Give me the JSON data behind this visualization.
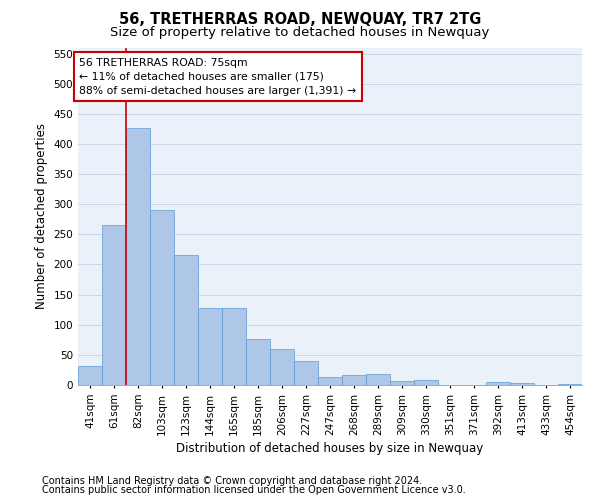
{
  "title": "56, TRETHERRAS ROAD, NEWQUAY, TR7 2TG",
  "subtitle": "Size of property relative to detached houses in Newquay",
  "xlabel": "Distribution of detached houses by size in Newquay",
  "ylabel": "Number of detached properties",
  "categories": [
    "41sqm",
    "61sqm",
    "82sqm",
    "103sqm",
    "123sqm",
    "144sqm",
    "165sqm",
    "185sqm",
    "206sqm",
    "227sqm",
    "247sqm",
    "268sqm",
    "289sqm",
    "309sqm",
    "330sqm",
    "351sqm",
    "371sqm",
    "392sqm",
    "413sqm",
    "433sqm",
    "454sqm"
  ],
  "values": [
    32,
    265,
    427,
    291,
    215,
    127,
    127,
    77,
    60,
    40,
    13,
    17,
    18,
    7,
    9,
    0,
    0,
    5,
    3,
    0,
    2
  ],
  "bar_color": "#aec6e8",
  "bar_edge_color": "#5b9bd5",
  "property_line_x": 1.5,
  "property_line_color": "#cc0000",
  "annotation_text": "56 TRETHERRAS ROAD: 75sqm\n← 11% of detached houses are smaller (175)\n88% of semi-detached houses are larger (1,391) →",
  "annotation_box_color": "#cc0000",
  "ylim": [
    0,
    560
  ],
  "yticks": [
    0,
    50,
    100,
    150,
    200,
    250,
    300,
    350,
    400,
    450,
    500,
    550
  ],
  "grid_color": "#c8d8e8",
  "background_color": "#eaf1f8",
  "footer_line1": "Contains HM Land Registry data © Crown copyright and database right 2024.",
  "footer_line2": "Contains public sector information licensed under the Open Government Licence v3.0.",
  "title_fontsize": 10.5,
  "subtitle_fontsize": 9.5,
  "axis_label_fontsize": 8.5,
  "tick_fontsize": 7.5,
  "footer_fontsize": 7.0
}
